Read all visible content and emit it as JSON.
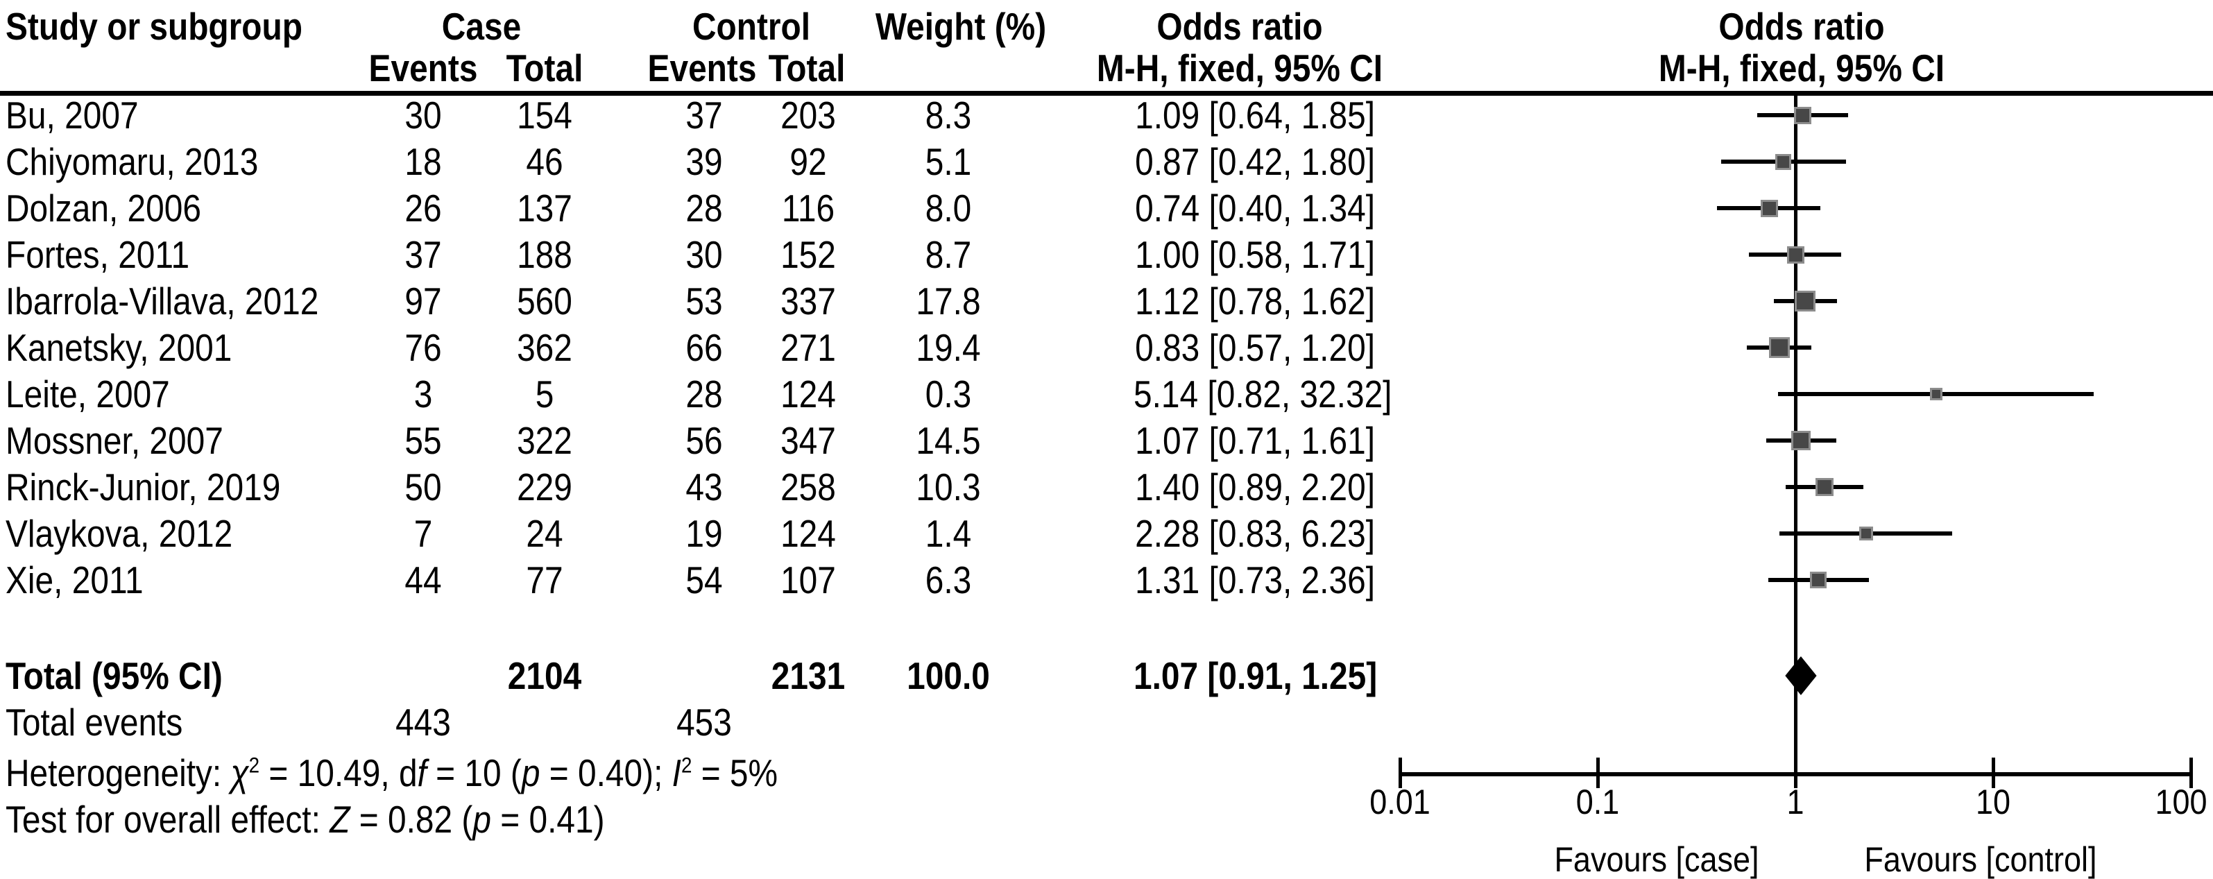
{
  "table": {
    "headers": {
      "study": "Study or subgroup",
      "case": "Case",
      "control": "Control",
      "weight": "Weight (%)",
      "odds_ratio": "Odds ratio",
      "events": "Events",
      "total": "Total",
      "mh_fixed": "M-H, fixed, 95% CI"
    }
  },
  "chart_data": {
    "type": "forest",
    "effect_measure": "Odds ratio, M-H (Mantel-Haenszel), fixed effect, 95% CI",
    "x_axis": {
      "scale": "log",
      "ticks": [
        0.01,
        0.1,
        1,
        10,
        100
      ],
      "range": [
        0.01,
        100
      ],
      "reference_line": 1
    },
    "favours_left": "Favours [case]",
    "favours_right": "Favours [control]",
    "colors": {
      "marker": "#474747",
      "marker_border": "#8c8c8c",
      "line": "#000000",
      "diamond": "#000000"
    },
    "studies": [
      {
        "name": "Bu, 2007",
        "case_events": "30",
        "case_total": "154",
        "control_events": "37",
        "control_total": "203",
        "weight": "8.3",
        "or": 1.09,
        "ci_low": 0.64,
        "ci_high": 1.85,
        "or_label": "1.09 [0.64, 1.85]"
      },
      {
        "name": "Chiyomaru, 2013",
        "case_events": "18",
        "case_total": "46",
        "control_events": "39",
        "control_total": "92",
        "weight": "5.1",
        "or": 0.87,
        "ci_low": 0.42,
        "ci_high": 1.8,
        "or_label": "0.87 [0.42, 1.80]"
      },
      {
        "name": "Dolzan, 2006",
        "case_events": "26",
        "case_total": "137",
        "control_events": "28",
        "control_total": "116",
        "weight": "8.0",
        "or": 0.74,
        "ci_low": 0.4,
        "ci_high": 1.34,
        "or_label": "0.74 [0.40, 1.34]"
      },
      {
        "name": "Fortes, 2011",
        "case_events": "37",
        "case_total": "188",
        "control_events": "30",
        "control_total": "152",
        "weight": "8.7",
        "or": 1.0,
        "ci_low": 0.58,
        "ci_high": 1.71,
        "or_label": "1.00 [0.58, 1.71]"
      },
      {
        "name": "Ibarrola-Villava, 2012",
        "case_events": "97",
        "case_total": "560",
        "control_events": "53",
        "control_total": "337",
        "weight": "17.8",
        "or": 1.12,
        "ci_low": 0.78,
        "ci_high": 1.62,
        "or_label": "1.12 [0.78, 1.62]"
      },
      {
        "name": "Kanetsky, 2001",
        "case_events": "76",
        "case_total": "362",
        "control_events": "66",
        "control_total": "271",
        "weight": "19.4",
        "or": 0.83,
        "ci_low": 0.57,
        "ci_high": 1.2,
        "or_label": "0.83 [0.57, 1.20]"
      },
      {
        "name": "Leite, 2007",
        "case_events": "3",
        "case_total": "5",
        "control_events": "28",
        "control_total": "124",
        "weight": "0.3",
        "or": 5.14,
        "ci_low": 0.82,
        "ci_high": 32.32,
        "or_label": "5.14 [0.82, 32.32]"
      },
      {
        "name": "Mossner, 2007",
        "case_events": "55",
        "case_total": "322",
        "control_events": "56",
        "control_total": "347",
        "weight": "14.5",
        "or": 1.07,
        "ci_low": 0.71,
        "ci_high": 1.61,
        "or_label": "1.07 [0.71, 1.61]"
      },
      {
        "name": "Rinck-Junior, 2019",
        "case_events": "50",
        "case_total": "229",
        "control_events": "43",
        "control_total": "258",
        "weight": "10.3",
        "or": 1.4,
        "ci_low": 0.89,
        "ci_high": 2.2,
        "or_label": "1.40 [0.89, 2.20]"
      },
      {
        "name": "Vlaykova, 2012",
        "case_events": "7",
        "case_total": "24",
        "control_events": "19",
        "control_total": "124",
        "weight": "1.4",
        "or": 2.28,
        "ci_low": 0.83,
        "ci_high": 6.23,
        "or_label": "2.28 [0.83, 6.23]"
      },
      {
        "name": "Xie, 2011",
        "case_events": "44",
        "case_total": "77",
        "control_events": "54",
        "control_total": "107",
        "weight": "6.3",
        "or": 1.31,
        "ci_low": 0.73,
        "ci_high": 2.36,
        "or_label": "1.31 [0.73, 2.36]"
      }
    ],
    "total": {
      "label": "Total (95% CI)",
      "case_total": "2104",
      "control_total": "2131",
      "weight": "100.0",
      "or": 1.07,
      "ci_low": 0.91,
      "ci_high": 1.25,
      "or_label": "1.07 [0.91, 1.25]"
    },
    "total_events": {
      "label": "Total events",
      "case": "443",
      "control": "453"
    },
    "heterogeneity": {
      "prefix": "Heterogeneity: ",
      "chi": "χ",
      "chi_sup": "2",
      "seg1": " = 10.49, d",
      "f": "f",
      "seg2": " = 10 (",
      "p": "p",
      "seg3": " = 0.40); ",
      "i_sym": "I",
      "i_sup": "2",
      "seg4": " = 5%"
    },
    "overall_effect": {
      "prefix": "Test for overall effect: ",
      "z": "Z",
      "seg1": " = 0.82 (",
      "p": "p",
      "seg2": " = 0.41)"
    }
  }
}
